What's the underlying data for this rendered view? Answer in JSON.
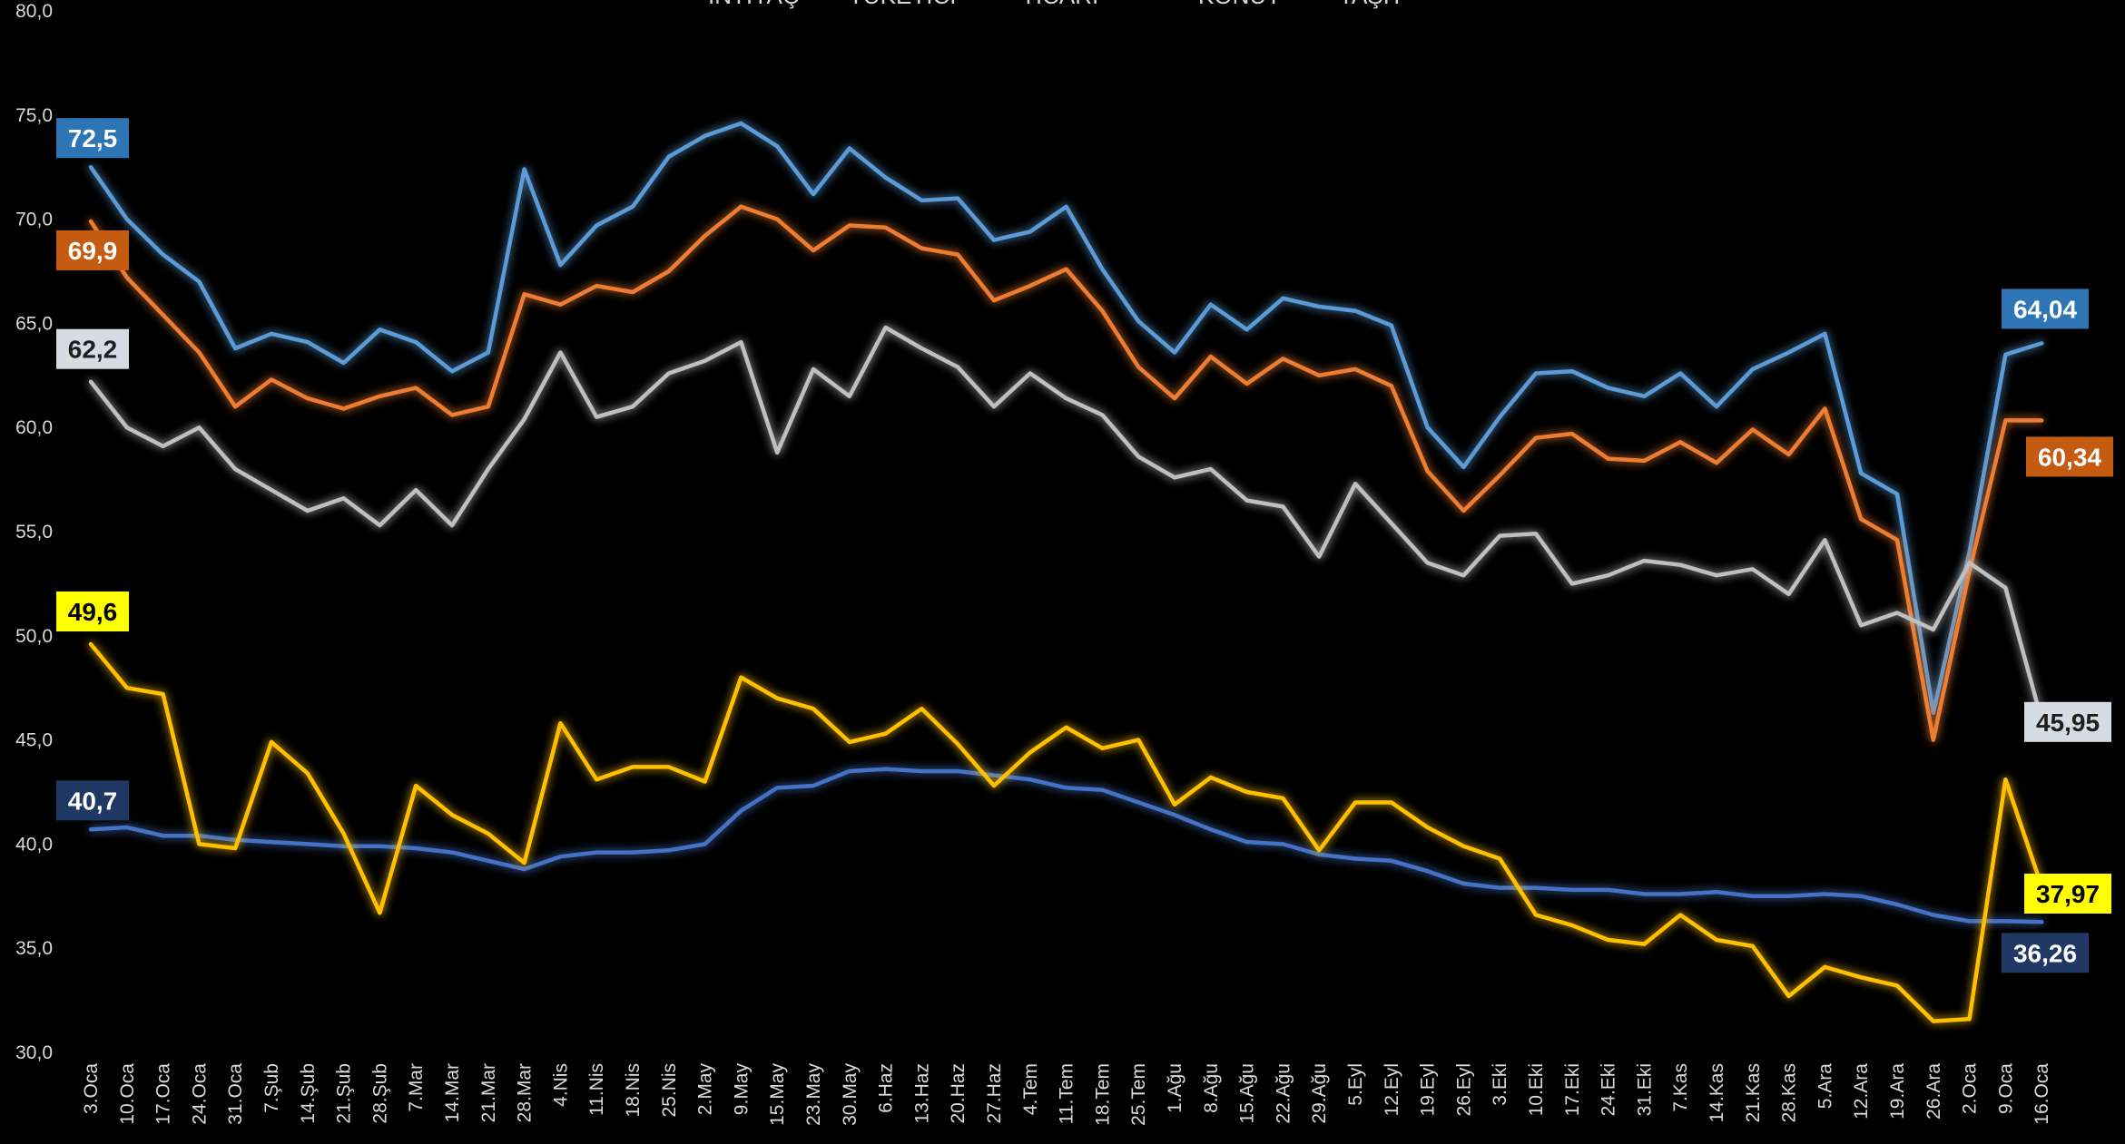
{
  "chart_data": {
    "type": "line",
    "title": "",
    "xlabel": "",
    "ylabel": "",
    "ylim": [
      30,
      80
    ],
    "y_ticks": [
      "30,0",
      "35,0",
      "40,0",
      "45,0",
      "50,0",
      "55,0",
      "60,0",
      "65,0",
      "70,0",
      "75,0",
      "80,0"
    ],
    "grid": false,
    "legend_position": "top-center",
    "legend_entries": [
      "İNTİYAÇ",
      "TÜKETİCİ",
      "TİCARİ",
      "KONUT",
      "TAŞIT"
    ],
    "x": [
      "3.Oca",
      "10.Oca",
      "17.Oca",
      "24.Oca",
      "31.Oca",
      "7.Şub",
      "14.Şub",
      "21.Şub",
      "28.Şub",
      "7.Mar",
      "14.Mar",
      "21.Mar",
      "28.Mar",
      "4.Nis",
      "11.Nis",
      "18.Nis",
      "25.Nis",
      "2.May",
      "9.May",
      "15.May",
      "23.May",
      "30.May",
      "6.Haz",
      "13.Haz",
      "20.Haz",
      "27.Haz",
      "4.Tem",
      "11.Tem",
      "18.Tem",
      "25.Tem",
      "1.Ağu",
      "8.Ağu",
      "15.Ağu",
      "22.Ağu",
      "29.Ağu",
      "5.Eyl",
      "12.Eyl",
      "19.Eyl",
      "26.Eyl",
      "3.Eki",
      "10.Eki",
      "17.Eki",
      "24.Eki",
      "31.Eki",
      "7.Kas",
      "14.Kas",
      "21.Kas",
      "28.Kas",
      "5.Ara",
      "12.Ara",
      "19.Ara",
      "26.Ara",
      "2.Oca",
      "9.Oca",
      "16.Oca"
    ],
    "series": [
      {
        "name": "İNTİYAÇ",
        "color": "#5b9bd5",
        "label_bg": "#2e75b6",
        "label_fg": "#ffffff",
        "start_label": "72,5",
        "end_label": "64,04",
        "values": [
          72.5,
          70.0,
          68.3,
          67.0,
          63.8,
          64.5,
          64.1,
          63.1,
          64.7,
          64.1,
          62.7,
          63.6,
          72.4,
          67.8,
          69.7,
          70.6,
          73.0,
          74.0,
          74.6,
          73.5,
          71.2,
          73.4,
          72.0,
          70.9,
          71.0,
          69.0,
          69.4,
          70.6,
          67.6,
          65.1,
          63.6,
          65.9,
          64.7,
          66.2,
          65.8,
          65.6,
          64.9,
          60.0,
          58.1,
          60.5,
          62.6,
          62.7,
          61.9,
          61.5,
          62.6,
          61.0,
          62.8,
          63.6,
          64.5,
          57.8,
          56.8,
          46.3,
          54.0,
          63.5,
          64.04
        ]
      },
      {
        "name": "TÜKETİCİ",
        "color": "#ed7d31",
        "label_bg": "#c55a11",
        "label_fg": "#ffffff",
        "start_label": "69,9",
        "end_label": "60,34",
        "values": [
          69.9,
          67.2,
          65.4,
          63.6,
          61.0,
          62.3,
          61.4,
          60.9,
          61.5,
          61.9,
          60.6,
          61.0,
          66.4,
          65.9,
          66.8,
          66.5,
          67.5,
          69.2,
          70.6,
          70.0,
          68.5,
          69.7,
          69.6,
          68.6,
          68.3,
          66.1,
          66.8,
          67.6,
          65.6,
          62.9,
          61.4,
          63.4,
          62.1,
          63.3,
          62.5,
          62.8,
          62.0,
          57.9,
          56.0,
          57.7,
          59.5,
          59.7,
          58.5,
          58.4,
          59.3,
          58.3,
          59.9,
          58.7,
          60.9,
          55.6,
          54.6,
          45.0,
          53.1,
          60.34,
          60.34
        ]
      },
      {
        "name": "TİCARİ",
        "color": "#bfbfbf",
        "label_bg": "#d6dce4",
        "label_fg": "#1f1f1f",
        "start_label": "62,2",
        "end_label": "45,95",
        "values": [
          62.2,
          60.0,
          59.1,
          60.0,
          58.0,
          57.0,
          56.0,
          56.6,
          55.3,
          57.0,
          55.3,
          58.0,
          60.4,
          63.6,
          60.5,
          61.0,
          62.6,
          63.2,
          64.1,
          58.8,
          62.8,
          61.5,
          64.8,
          63.8,
          62.9,
          61.0,
          62.6,
          61.4,
          60.6,
          58.6,
          57.6,
          58.0,
          56.5,
          56.2,
          53.8,
          57.3,
          55.4,
          53.5,
          52.9,
          54.8,
          54.9,
          52.5,
          52.9,
          53.6,
          53.4,
          52.9,
          53.2,
          52.0,
          54.6,
          50.5,
          51.1,
          50.3,
          53.5,
          52.3,
          45.95
        ]
      },
      {
        "name": "KONUT",
        "color": "#4472c4",
        "label_bg": "#1f3864",
        "label_fg": "#ffffff",
        "start_label": "40,7",
        "end_label": "36,26",
        "values": [
          40.7,
          40.8,
          40.4,
          40.4,
          40.2,
          40.1,
          40.0,
          39.9,
          39.9,
          39.8,
          39.6,
          39.2,
          38.8,
          39.4,
          39.6,
          39.6,
          39.7,
          40.0,
          41.6,
          42.7,
          42.8,
          43.5,
          43.6,
          43.5,
          43.5,
          43.3,
          43.1,
          42.7,
          42.6,
          42.0,
          41.4,
          40.7,
          40.1,
          40.0,
          39.5,
          39.3,
          39.2,
          38.7,
          38.1,
          37.9,
          37.9,
          37.8,
          37.8,
          37.6,
          37.6,
          37.7,
          37.5,
          37.5,
          37.6,
          37.5,
          37.1,
          36.6,
          36.3,
          36.3,
          36.26
        ]
      },
      {
        "name": "TAŞIT",
        "color": "#ffc000",
        "label_bg": "#ffff00",
        "label_fg": "#000000",
        "start_label": "49,6",
        "end_label": "37,97",
        "values": [
          49.6,
          47.5,
          47.2,
          40.0,
          39.8,
          44.9,
          43.4,
          40.5,
          36.7,
          42.8,
          41.4,
          40.5,
          39.1,
          45.8,
          43.1,
          43.7,
          43.7,
          43.0,
          48.0,
          47.0,
          46.5,
          44.9,
          45.3,
          46.5,
          44.8,
          42.8,
          44.4,
          45.6,
          44.6,
          45.0,
          41.9,
          43.2,
          42.5,
          42.2,
          39.7,
          42.0,
          42.0,
          40.8,
          39.9,
          39.3,
          36.6,
          36.1,
          35.4,
          35.2,
          36.6,
          35.4,
          35.1,
          32.7,
          34.1,
          33.6,
          33.2,
          31.5,
          31.6,
          43.1,
          37.97
        ]
      }
    ]
  }
}
